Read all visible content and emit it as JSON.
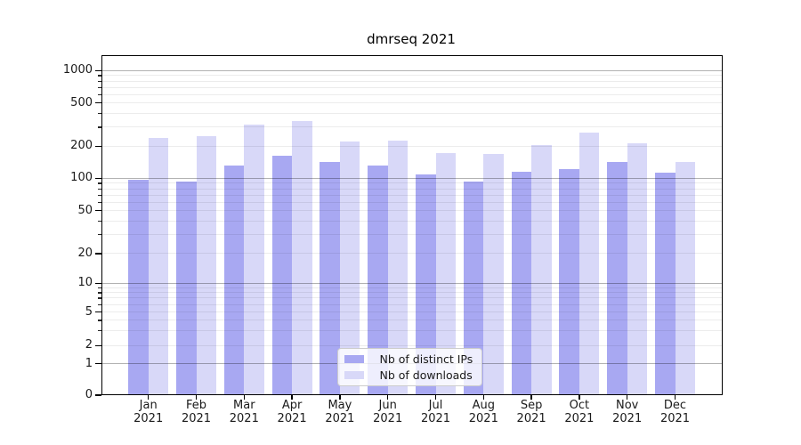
{
  "title": "dmrseq 2021",
  "colors": {
    "ips": "#a8a8f2",
    "downloads": "#d8d8f8",
    "grid_major": "rgba(0,0,0,0.30)",
    "grid_minor": "rgba(0,0,0,0.075)"
  },
  "legend": {
    "items": [
      {
        "label": "Nb of distinct IPs",
        "color_key": "ips"
      },
      {
        "label": "Nb of downloads",
        "color_key": "downloads"
      }
    ]
  },
  "chart_data": {
    "type": "bar",
    "title": "dmrseq 2021",
    "categories": [
      "Jan 2021",
      "Feb 2021",
      "Mar 2021",
      "Apr 2021",
      "May 2021",
      "Jun 2021",
      "Jul 2021",
      "Aug 2021",
      "Sep 2021",
      "Oct 2021",
      "Nov 2021",
      "Dec 2021"
    ],
    "x_tick_months": [
      "Jan",
      "Feb",
      "Mar",
      "Apr",
      "May",
      "Jun",
      "Jul",
      "Aug",
      "Sep",
      "Oct",
      "Nov",
      "Dec"
    ],
    "x_tick_year": "2021",
    "series": [
      {
        "name": "Nb of distinct IPs",
        "values": [
          96,
          93,
          132,
          164,
          142,
          132,
          109,
          93,
          116,
          123,
          141,
          112
        ]
      },
      {
        "name": "Nb of downloads",
        "values": [
          237,
          247,
          315,
          342,
          222,
          226,
          172,
          170,
          205,
          265,
          211,
          141
        ]
      }
    ],
    "xlabel": "",
    "ylabel": "",
    "yscale": "symlog",
    "ytick_values": [
      0,
      1,
      2,
      5,
      10,
      20,
      50,
      100,
      200,
      500,
      1000
    ],
    "ytick_labels": [
      "0",
      "1",
      "2",
      "5",
      "10",
      "20",
      "50",
      "100",
      "200",
      "500",
      "1000"
    ],
    "ylim": [
      0,
      1390
    ],
    "grid": "horizontal, major + minor (log decades)",
    "legend_position": "lower center"
  }
}
